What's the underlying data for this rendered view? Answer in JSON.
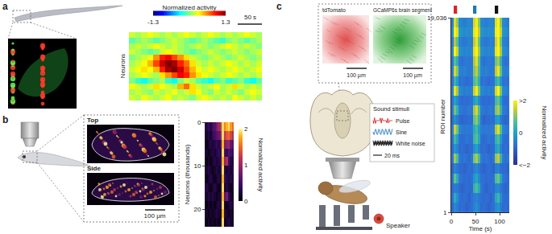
{
  "chart_data": [
    {
      "type": "heatmap",
      "panel": "a",
      "ylabel": "Neurons",
      "tick_labels": false,
      "x": [
        6.25,
        18.75,
        31.25,
        43.75,
        56.25,
        68.75,
        81.25,
        93.75,
        106.25,
        118.75,
        131.25,
        143.75,
        156.25,
        168.75,
        181.25,
        193.75,
        206.25,
        218.75,
        231.25,
        243.75,
        256.25,
        268.75
      ],
      "xlim": [
        0,
        275
      ],
      "scale_bar": {
        "value": 50,
        "label": "50 s"
      },
      "cells": [
        [
          0.2,
          0.1,
          0.3,
          0.2,
          0.1,
          0.2,
          0.3,
          0.1,
          0.2,
          0.1,
          0.0,
          0.2,
          0.3,
          0.2,
          0.1,
          0.2,
          0.1,
          0.3,
          0.2,
          0.1,
          0.2,
          0.1
        ],
        [
          0.1,
          0.2,
          0.1,
          0.0,
          0.2,
          0.1,
          0.2,
          0.3,
          0.1,
          0.2,
          0.4,
          0.3,
          0.1,
          0.0,
          0.2,
          0.1,
          0.2,
          0.1,
          0.0,
          0.2,
          0.3,
          0.2
        ],
        [
          0.3,
          0.2,
          0.1,
          0.2,
          0.4,
          0.3,
          0.2,
          0.1,
          0.5,
          0.7,
          0.4,
          0.2,
          0.1,
          0.2,
          0.3,
          0.1,
          0.2,
          0.4,
          0.2,
          0.1,
          0.2,
          0.1
        ],
        [
          0.0,
          -0.2,
          -0.3,
          -0.1,
          0.0,
          0.1,
          -0.2,
          -0.3,
          0.0,
          0.2,
          0.1,
          -0.1,
          -0.2,
          -0.3,
          -0.1,
          0.0,
          -0.2,
          -0.1,
          0.0,
          -0.2,
          -0.3,
          -0.1
        ],
        [
          0.1,
          0.2,
          0.3,
          0.2,
          0.1,
          0.4,
          0.6,
          0.8,
          1.0,
          0.9,
          0.6,
          0.4,
          0.3,
          0.2,
          0.1,
          0.2,
          0.3,
          0.2,
          0.1,
          0.2,
          0.1,
          0.2
        ],
        [
          0.2,
          0.3,
          0.4,
          0.3,
          0.5,
          0.9,
          1.2,
          1.3,
          1.1,
          0.8,
          0.5,
          0.3,
          0.2,
          0.3,
          0.2,
          0.1,
          0.2,
          0.3,
          0.2,
          0.1,
          0.2,
          0.3
        ],
        [
          0.1,
          0.2,
          0.3,
          0.5,
          0.8,
          1.1,
          1.3,
          1.2,
          0.9,
          0.7,
          0.4,
          0.2,
          0.1,
          0.2,
          0.1,
          0.2,
          0.3,
          0.2,
          0.1,
          0.2,
          0.1,
          0.2
        ],
        [
          0.0,
          0.1,
          0.2,
          0.3,
          0.6,
          0.9,
          1.0,
          0.8,
          0.6,
          0.4,
          0.2,
          0.1,
          0.0,
          0.1,
          0.2,
          0.1,
          0.0,
          0.1,
          0.2,
          0.1,
          0.0,
          0.1
        ],
        [
          0.2,
          0.1,
          0.0,
          -0.1,
          0.0,
          0.2,
          0.3,
          0.2,
          0.1,
          0.0,
          -0.1,
          0.0,
          0.1,
          0.2,
          0.1,
          0.0,
          0.1,
          0.2,
          0.1,
          0.0,
          0.1,
          0.2
        ],
        [
          0.1,
          0.2,
          0.1,
          0.2,
          0.3,
          0.2,
          0.1,
          0.2,
          0.1,
          0.0,
          0.1,
          0.2,
          0.1,
          0.0,
          0.1,
          0.2,
          0.3,
          0.2,
          0.1,
          0.2,
          0.1,
          0.0
        ],
        [
          -0.1,
          0.0,
          0.1,
          0.0,
          -0.1,
          0.0,
          0.1,
          0.2,
          0.1,
          0.0,
          -0.1,
          0.0,
          0.1,
          0.0,
          -0.1,
          -0.2,
          0.0,
          0.1,
          0.0,
          -0.1,
          0.0,
          0.1
        ],
        [
          0.2,
          0.1,
          0.2,
          0.3,
          0.2,
          0.1,
          0.2,
          0.1,
          0.2,
          0.3,
          0.2,
          0.1,
          0.2,
          0.3,
          0.2,
          0.1,
          0.2,
          0.1,
          0.2,
          0.3,
          0.2,
          0.1
        ]
      ],
      "colorbar": {
        "title": "Normalized activity",
        "range": [
          -1.3,
          1.3
        ],
        "ticks": [
          -1.3,
          1.3
        ]
      }
    },
    {
      "type": "heatmap",
      "panel": "b",
      "ylabel": "Neurons (thousands)",
      "tick_labels": "y",
      "y": [
        1,
        3,
        5,
        7,
        9,
        11,
        13,
        15,
        17,
        19,
        21,
        23
      ],
      "ylim": [
        0,
        24
      ],
      "yticks": [
        0,
        10,
        20
      ],
      "cells": [
        [
          0.3,
          0.4,
          0.3,
          0.5,
          0.6,
          0.8,
          1.0,
          1.2,
          1.9,
          1.6,
          1.8,
          1.9,
          1.7,
          1.5
        ],
        [
          0.2,
          0.3,
          0.2,
          0.4,
          0.5,
          0.6,
          0.7,
          0.9,
          1.9,
          1.2,
          1.4,
          1.5,
          1.3,
          1.1
        ],
        [
          0.1,
          0.2,
          0.3,
          0.2,
          0.3,
          0.4,
          0.3,
          0.5,
          1.8,
          0.8,
          0.9,
          1.0,
          0.7,
          0.6
        ],
        [
          0.2,
          0.1,
          0.2,
          0.3,
          0.2,
          0.3,
          0.4,
          0.3,
          1.9,
          0.5,
          0.4,
          0.6,
          0.5,
          0.4
        ],
        [
          0.1,
          0.2,
          0.1,
          0.2,
          0.3,
          0.2,
          0.3,
          0.4,
          1.8,
          0.9,
          1.1,
          0.5,
          0.3,
          0.2
        ],
        [
          0.2,
          0.3,
          0.2,
          0.1,
          0.2,
          0.3,
          0.2,
          0.3,
          1.9,
          0.3,
          0.2,
          0.3,
          0.2,
          0.3
        ],
        [
          0.1,
          0.2,
          0.3,
          0.2,
          0.1,
          0.2,
          0.3,
          0.2,
          1.8,
          0.4,
          0.3,
          0.2,
          0.3,
          0.2
        ],
        [
          0.3,
          0.2,
          0.1,
          0.2,
          0.3,
          0.2,
          0.1,
          0.2,
          1.9,
          0.2,
          0.3,
          0.2,
          0.1,
          0.2
        ],
        [
          0.2,
          0.3,
          0.2,
          0.3,
          0.2,
          0.1,
          0.2,
          0.3,
          1.8,
          0.6,
          0.8,
          0.4,
          0.2,
          0.1
        ],
        [
          0.1,
          0.2,
          0.1,
          0.2,
          0.1,
          0.2,
          0.3,
          0.2,
          1.9,
          0.2,
          0.1,
          0.2,
          0.3,
          0.2
        ],
        [
          0.2,
          0.1,
          0.2,
          0.1,
          0.2,
          0.3,
          0.2,
          0.1,
          1.8,
          0.3,
          0.2,
          0.1,
          0.2,
          0.1
        ],
        [
          0.1,
          0.2,
          0.1,
          0.2,
          0.1,
          0.2,
          0.1,
          0.2,
          1.9,
          0.1,
          0.2,
          0.3,
          0.2,
          0.1
        ]
      ],
      "colorbar": {
        "title": "Normalized activity",
        "range": [
          0,
          2
        ],
        "ticks": [
          0,
          1,
          2
        ]
      }
    },
    {
      "type": "heatmap",
      "panel": "c",
      "xlabel": "Time (s)",
      "ylabel": "ROI number",
      "x": [
        2.5,
        7.5,
        12.5,
        17.5,
        22.5,
        27.5,
        32.5,
        37.5,
        42.5,
        47.5,
        52.5,
        57.5,
        62.5,
        67.5,
        72.5,
        77.5,
        82.5,
        87.5,
        92.5,
        97.5,
        102.5,
        107.5,
        112.5,
        117.5
      ],
      "xlim": [
        0,
        120
      ],
      "xticks": [
        0,
        50,
        100
      ],
      "y": [
        476,
        1428,
        2380,
        3332,
        4284,
        5236,
        6188,
        7140,
        8092,
        9044,
        9996,
        10948,
        11900,
        12852,
        13804,
        14756,
        15708,
        16660,
        17612,
        18564
      ],
      "ylim": [
        1,
        19036
      ],
      "yticks": [
        {
          "value": 19036,
          "label": "19,036"
        },
        1
      ],
      "stimuli": [
        {
          "name": "Pulse",
          "color": "#d62728",
          "start": 5,
          "end": 12
        },
        {
          "name": "Sine",
          "color": "#1f77b4",
          "start": 45,
          "end": 52
        },
        {
          "name": "White noise",
          "color": "#111111",
          "start": 90,
          "end": 97
        }
      ],
      "cells": [
        [
          -0.9,
          -0.4,
          -0.6,
          -0.9,
          -0.8,
          -0.9,
          -1.0,
          -0.9,
          -0.8,
          -0.5,
          -0.3,
          -0.6,
          -0.9,
          -0.8,
          -0.9,
          -1.0,
          -0.9,
          -0.8,
          -0.4,
          -0.2,
          -0.6,
          -0.9,
          -0.8,
          -0.9
        ],
        [
          -0.8,
          0.2,
          -0.3,
          -0.8,
          -0.9,
          -0.8,
          -0.9,
          -1.0,
          -0.8,
          -0.6,
          -0.5,
          -0.7,
          -0.8,
          -0.9,
          -0.8,
          -0.9,
          -1.0,
          -0.8,
          0.1,
          0.4,
          -0.3,
          -0.8,
          -0.9,
          -0.8
        ],
        [
          -0.9,
          -0.6,
          -0.7,
          -0.9,
          -1.0,
          -0.9,
          -0.8,
          -0.9,
          -0.9,
          0.3,
          0.6,
          0.1,
          -0.7,
          -0.9,
          -1.0,
          -0.9,
          -0.8,
          -0.9,
          -0.5,
          -0.4,
          -0.7,
          -0.9,
          -1.0,
          -0.9
        ],
        [
          -0.8,
          0.8,
          0.2,
          -0.7,
          -0.8,
          -0.9,
          -0.8,
          -0.9,
          -0.8,
          -0.2,
          0.1,
          -0.4,
          -0.8,
          -0.8,
          -0.9,
          -0.8,
          -0.9,
          -0.8,
          0.6,
          0.9,
          0.1,
          -0.7,
          -0.8,
          -0.9
        ],
        [
          -1.0,
          -0.5,
          -0.7,
          -0.9,
          -0.9,
          -1.0,
          -0.9,
          -0.8,
          -0.9,
          -0.6,
          -0.4,
          -0.7,
          -0.9,
          -1.0,
          -0.9,
          -0.8,
          -0.9,
          -1.0,
          -0.6,
          -0.5,
          -0.8,
          -0.9,
          -0.9,
          -1.0
        ],
        [
          -0.7,
          1.2,
          0.6,
          -0.6,
          -0.8,
          -0.7,
          -0.8,
          -0.9,
          -0.7,
          0.9,
          1.3,
          0.5,
          -0.6,
          -0.8,
          -0.7,
          -0.8,
          -0.9,
          -0.7,
          1.1,
          1.4,
          0.4,
          -0.6,
          -0.8,
          -0.7
        ],
        [
          -0.9,
          -0.2,
          -0.5,
          -0.9,
          -0.8,
          -0.9,
          -1.0,
          -0.9,
          -0.9,
          -0.3,
          0.0,
          -0.5,
          -0.9,
          -0.8,
          -0.9,
          -1.0,
          -0.9,
          -0.9,
          -0.1,
          0.2,
          -0.5,
          -0.9,
          -0.8,
          -0.9
        ],
        [
          -0.8,
          0.5,
          0.0,
          -0.8,
          -0.9,
          -0.8,
          -0.7,
          -0.8,
          -0.8,
          0.4,
          0.7,
          0.1,
          -0.8,
          -0.9,
          -0.8,
          -0.7,
          -0.8,
          -0.8,
          0.3,
          0.6,
          -0.1,
          -0.8,
          -0.9,
          -0.8
        ],
        [
          -0.6,
          1.5,
          0.9,
          -0.4,
          -0.6,
          -0.7,
          -0.6,
          -0.7,
          -0.6,
          0.2,
          0.5,
          -0.1,
          -0.6,
          -0.7,
          -0.6,
          -0.7,
          -0.6,
          -0.6,
          1.3,
          1.7,
          0.7,
          -0.5,
          -0.6,
          -0.7
        ],
        [
          -0.9,
          -0.3,
          -0.6,
          -0.9,
          -1.0,
          -0.9,
          -0.9,
          -0.8,
          -0.9,
          0.8,
          1.1,
          0.3,
          -0.8,
          -1.0,
          -0.9,
          -0.9,
          -0.8,
          -0.9,
          -0.2,
          0.0,
          -0.6,
          -0.9,
          -1.0,
          -0.9
        ],
        [
          -0.7,
          0.9,
          0.3,
          -0.6,
          -0.7,
          -0.8,
          -0.7,
          -0.6,
          -0.7,
          1.2,
          1.6,
          0.6,
          -0.6,
          -0.7,
          -0.8,
          -0.7,
          -0.6,
          -0.7,
          1.0,
          1.3,
          0.4,
          -0.6,
          -0.7,
          -0.8
        ],
        [
          -0.8,
          0.0,
          -0.4,
          -0.8,
          -0.9,
          -0.8,
          -0.9,
          -0.8,
          -0.8,
          -0.1,
          0.2,
          -0.4,
          -0.8,
          -0.9,
          -0.8,
          -0.9,
          -0.8,
          -0.8,
          0.5,
          0.8,
          0.0,
          -0.8,
          -0.9,
          -0.8
        ],
        [
          -0.5,
          1.8,
          1.2,
          -0.3,
          -0.5,
          -0.6,
          -0.5,
          -0.6,
          -0.5,
          1.5,
          1.9,
          0.9,
          -0.4,
          -0.5,
          -0.6,
          -0.5,
          -0.6,
          -0.5,
          1.6,
          2.0,
          1.0,
          -0.4,
          -0.5,
          -0.6
        ],
        [
          -0.8,
          0.4,
          -0.1,
          -0.8,
          -0.7,
          -0.8,
          -0.9,
          -0.8,
          -0.8,
          0.6,
          0.9,
          0.2,
          -0.8,
          -0.7,
          -0.8,
          -0.9,
          -0.8,
          -0.8,
          0.2,
          0.5,
          -0.2,
          -0.8,
          -0.7,
          -0.8
        ],
        [
          -0.6,
          1.6,
          1.0,
          -0.5,
          -0.6,
          -0.5,
          -0.6,
          -0.7,
          -0.6,
          1.0,
          1.4,
          0.5,
          -0.5,
          -0.6,
          -0.5,
          -0.6,
          -0.7,
          -0.6,
          1.4,
          1.8,
          0.8,
          -0.5,
          -0.6,
          -0.5
        ],
        [
          -0.7,
          0.7,
          0.2,
          -0.7,
          -0.8,
          -0.7,
          -0.6,
          -0.7,
          -0.7,
          1.3,
          1.7,
          0.7,
          -0.6,
          -0.8,
          -0.7,
          -0.6,
          -0.7,
          -0.7,
          0.9,
          1.2,
          0.3,
          -0.7,
          -0.8,
          -0.7
        ],
        [
          -0.4,
          2.0,
          1.5,
          -0.2,
          -0.4,
          -0.5,
          -0.4,
          -0.5,
          -0.4,
          1.7,
          2.0,
          1.2,
          -0.3,
          -0.4,
          -0.5,
          -0.4,
          -0.5,
          -0.4,
          1.8,
          2.0,
          1.3,
          -0.3,
          -0.4,
          -0.5
        ],
        [
          -0.6,
          1.3,
          0.7,
          -0.5,
          -0.6,
          -0.7,
          -0.6,
          -0.5,
          -0.6,
          1.4,
          1.8,
          0.8,
          -0.5,
          -0.6,
          -0.7,
          -0.6,
          -0.5,
          -0.6,
          1.5,
          1.9,
          0.9,
          -0.5,
          -0.6,
          -0.7
        ],
        [
          -0.3,
          2.0,
          1.7,
          -0.1,
          -0.3,
          -0.4,
          -0.3,
          -0.4,
          -0.3,
          1.8,
          2.0,
          1.4,
          -0.2,
          -0.3,
          -0.4,
          -0.3,
          -0.4,
          -0.3,
          1.9,
          2.0,
          1.5,
          -0.2,
          -0.3,
          -0.4
        ],
        [
          -0.5,
          1.7,
          1.1,
          -0.4,
          -0.5,
          -0.6,
          -0.5,
          -0.4,
          -0.5,
          1.6,
          1.9,
          1.0,
          -0.4,
          -0.5,
          -0.6,
          -0.5,
          -0.4,
          -0.5,
          1.7,
          2.0,
          1.1,
          -0.4,
          -0.5,
          -0.6
        ]
      ],
      "colorbar": {
        "title": "Normalized activity",
        "range": [
          -2,
          2
        ],
        "ticks": [
          {
            "value": 2,
            "label": ">2"
          },
          0,
          {
            "value": -2,
            "label": "<−2"
          }
        ]
      }
    }
  ],
  "diagram": {
    "b": {
      "views": [
        "Top",
        "Side"
      ],
      "scale_bar": "100 µm"
    },
    "c": {
      "images": [
        "tdTomato",
        "GCaMP6s brain segment"
      ],
      "scale_bar": "100 µm",
      "stimuli_title": "Sound stimuli",
      "time_scale": "20 ms",
      "speaker": "Speaker"
    }
  }
}
